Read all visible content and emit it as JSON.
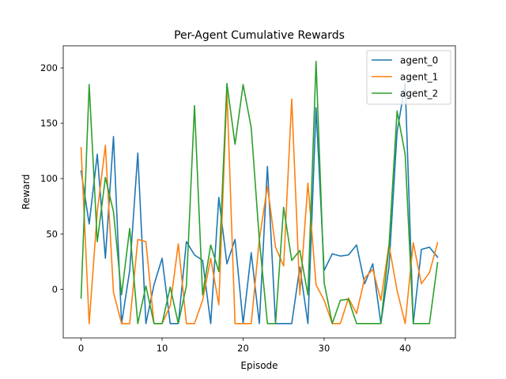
{
  "chart_data": {
    "type": "line",
    "title": "Per-Agent Cumulative Rewards",
    "xlabel": "Episode",
    "ylabel": "Reward",
    "xlim": [
      -2.2,
      46.2
    ],
    "ylim": [
      -44,
      220
    ],
    "xticks": [
      0,
      10,
      20,
      30,
      40
    ],
    "yticks": [
      0,
      50,
      100,
      150,
      200
    ],
    "grid": false,
    "legend_position": "top-right",
    "x": [
      0,
      1,
      2,
      3,
      4,
      5,
      6,
      7,
      8,
      9,
      10,
      11,
      12,
      13,
      14,
      15,
      16,
      17,
      18,
      19,
      20,
      21,
      22,
      23,
      24,
      25,
      26,
      27,
      28,
      29,
      30,
      31,
      32,
      33,
      34,
      35,
      36,
      37,
      38,
      39,
      40,
      41,
      42,
      43,
      44
    ],
    "series": [
      {
        "name": "agent_0",
        "color": "#1f77b4",
        "values": [
          107,
          59,
          122,
          28,
          138,
          -31,
          17,
          123,
          -31,
          4,
          28,
          -31,
          -31,
          43,
          31,
          26,
          -31,
          83,
          23,
          45,
          -31,
          33,
          -31,
          111,
          -31,
          -31,
          -31,
          20,
          -31,
          164,
          17,
          32,
          30,
          31,
          40,
          5,
          23,
          -31,
          20,
          142,
          186,
          -31,
          36,
          38,
          29
        ]
      },
      {
        "name": "agent_1",
        "color": "#ff7f0e",
        "values": [
          128,
          -31,
          70,
          130,
          -3,
          -31,
          -31,
          45,
          43,
          -31,
          -31,
          -15,
          41,
          -31,
          -31,
          -10,
          28,
          -14,
          180,
          -31,
          -31,
          -31,
          45,
          93,
          38,
          21,
          172,
          -5,
          96,
          4,
          -10,
          -31,
          -31,
          -8,
          -22,
          10,
          18,
          -10,
          40,
          -1,
          -31,
          42,
          5,
          15,
          42
        ]
      },
      {
        "name": "agent_2",
        "color": "#2ca02c",
        "values": [
          -8,
          185,
          43,
          101,
          70,
          -5,
          55,
          -31,
          3,
          -31,
          -31,
          2,
          -31,
          3,
          166,
          -5,
          40,
          16,
          186,
          131,
          185,
          146,
          45,
          -31,
          -31,
          74,
          26,
          35,
          -5,
          206,
          6,
          -31,
          -10,
          -9,
          -31,
          -31,
          -31,
          -31,
          39,
          161,
          122,
          -31,
          -31,
          -31,
          24
        ]
      }
    ]
  }
}
